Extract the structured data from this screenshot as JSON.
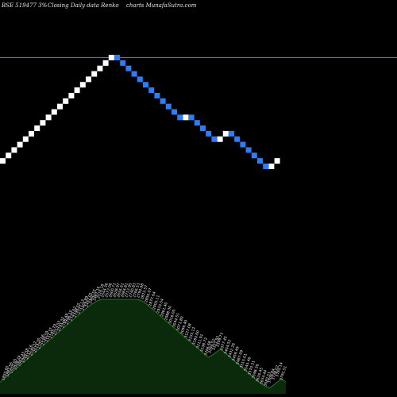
{
  "header": {
    "symbol_text": "BSE 519477 3%",
    "description_text": "Closing Daily data  Renko",
    "site_text": "charts MunafaSutra.com"
  },
  "colors": {
    "background": "#000000",
    "up_brick": "#ffffff",
    "down_brick": "#2e7cf6",
    "reference_line": "#b8741a",
    "volume_fill": "#0b2a0b",
    "volume_outline": "#1e7a1e",
    "label_text": "#f0f0f0"
  },
  "chart_data": {
    "type": "renko",
    "directions": [
      "U",
      "U",
      "U",
      "U",
      "U",
      "U",
      "U",
      "U",
      "U",
      "U",
      "U",
      "U",
      "U",
      "U",
      "U",
      "U",
      "U",
      "U",
      "U",
      "U",
      "D",
      "D",
      "D",
      "D",
      "D",
      "D",
      "D",
      "D",
      "D",
      "D",
      "D",
      "D",
      "U",
      "D",
      "D",
      "D",
      "D",
      "D",
      "U",
      "U",
      "D",
      "D",
      "D",
      "D",
      "D",
      "D",
      "D",
      "U",
      "U"
    ],
    "reference_lines": [
      30.5,
      19.5
    ],
    "volume_labels": [
      "1855.60",
      "1881.56",
      "1910.05",
      "1938.24",
      "1962.43",
      "1990.58",
      "2017.16",
      "2045.52",
      "2074.30",
      "2101.66",
      "2130.59",
      "2157.37",
      "2185.79",
      "2213.53",
      "2241.32",
      "2268.49",
      "2296.10",
      "2320.62",
      "2348.55",
      "2377.13",
      "2404.89",
      "2432.05",
      "2460.55",
      "2487.16",
      "2516.18",
      "2544.36",
      "2572.06",
      "2600.71",
      "2628.97",
      "2656.61",
      "2684.81",
      "2712.95",
      "2740.83",
      "2766.53",
      "2794.98",
      "2823.57",
      "2850.07",
      "2877.64",
      "2905.11",
      "2933.54",
      "2961.40",
      "2988.30",
      "3016.00",
      "3044.51",
      "3071.80",
      "3099.40",
      "3127.08",
      "3155.12",
      "3183.60",
      "3211.91",
      "3238.72",
      "3266.68",
      "3294.52",
      "3321.92",
      "3349.73",
      "3377.45",
      "3404.52",
      "3432.26",
      "3459.49",
      "3487.09",
      "3515.01",
      "3543.46",
      "3570.31",
      "3598.36",
      "3626.45",
      "3654.44",
      "3682.51",
      "3709.84",
      "3738.02",
      "3765.14",
      "3792.51"
    ],
    "volume_values": [
      12.4,
      16.1,
      19.8,
      23.4,
      27.2,
      30.9,
      34.5,
      38.2,
      41.8,
      45.6,
      49.3,
      52.9,
      56.6,
      60.2,
      64.1,
      67.8,
      71.4,
      75.1,
      78.9,
      82.6,
      86.3,
      89.9,
      93.5,
      96.4,
      98.8,
      100,
      100,
      100,
      100,
      100,
      100,
      100,
      100,
      100,
      99.5,
      97.8,
      94.6,
      90.8,
      87.1,
      83.4,
      79.6,
      75.9,
      72.1,
      68.4,
      64.7,
      61.0,
      57.2,
      53.5,
      49.8,
      46.0,
      42.3,
      38.6,
      41.0,
      44.2,
      47.5,
      43.8,
      40.1,
      36.4,
      32.7,
      29.0,
      25.3,
      21.6,
      17.9,
      14.2,
      10.5,
      8.0,
      6.1,
      9.3,
      12.8,
      16.0,
      12.3
    ]
  }
}
